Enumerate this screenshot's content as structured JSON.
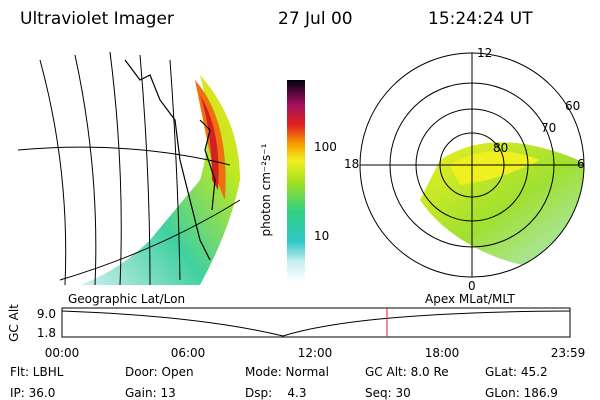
{
  "header": {
    "title": "Ultraviolet Imager",
    "date": "27 Jul 00",
    "time": "15:24:24 UT"
  },
  "colorbar": {
    "unit": "photon cm⁻²s⁻¹",
    "ticks": [
      "100",
      "10"
    ]
  },
  "panels": {
    "left": "Geographic Lat/Lon",
    "right": "Apex MLat/MLT"
  },
  "polar": {
    "mlt": [
      "12",
      "18",
      "6",
      "0"
    ],
    "mlat": [
      "60",
      "70",
      "80"
    ]
  },
  "altitude": {
    "ylabel": "GC Alt",
    "yticks": [
      "9.0",
      "1.8"
    ],
    "xticks": [
      "00:00",
      "06:00",
      "12:00",
      "18:00",
      "23:59"
    ]
  },
  "info": [
    [
      "Flt: LBHL",
      "Door: Open",
      "Mode: Normal",
      "GC Alt: 8.0 Re",
      "GLat: 45.2"
    ],
    [
      "IP: 36.0",
      "Gain: 13",
      "Dsp:    4.3",
      "Seq: 30",
      "GLon: 186.9"
    ]
  ]
}
